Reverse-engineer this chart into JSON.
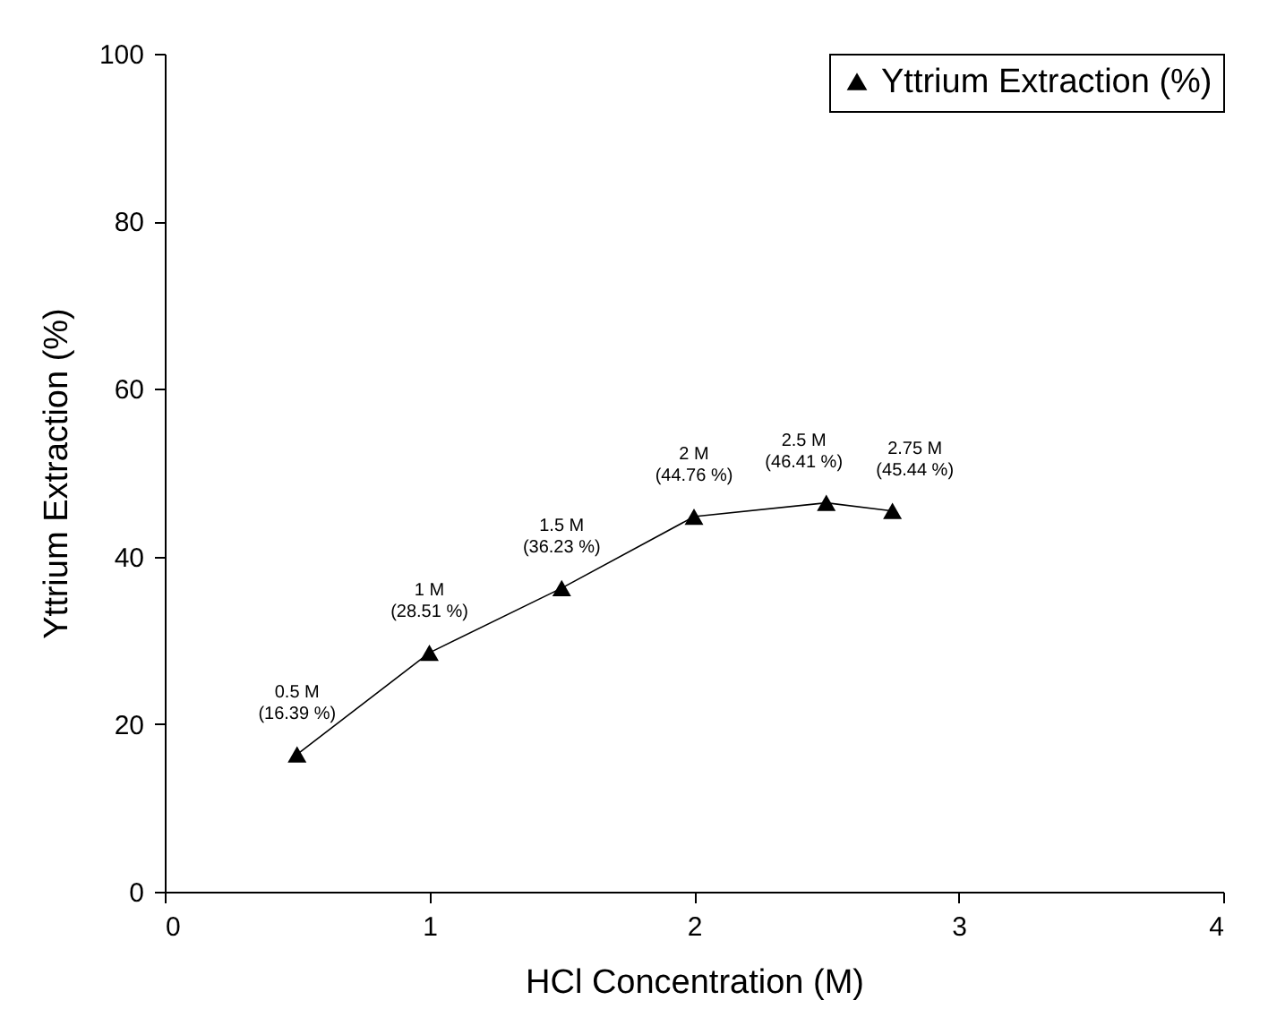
{
  "chart_data": {
    "type": "line",
    "xlabel": "HCl Concentration (M)",
    "ylabel": "Yttrium Extraction (%)",
    "x": [
      0.5,
      1,
      1.5,
      2,
      2.5,
      2.75
    ],
    "series": [
      {
        "name": "Yttrium Extraction (%)",
        "color": "#000000",
        "values": [
          16.39,
          28.51,
          36.23,
          44.76,
          46.41,
          45.44
        ],
        "value_labels": [
          "0.5 M\n(16.39 %)",
          "1 M\n(28.51 %)",
          "1.5 M\n(36.23 %)",
          "2 M\n(44.76 %)",
          "2.5 M\n(46.41 %)",
          "2.75 M\n(45.44 %)"
        ]
      }
    ],
    "xlim": [
      0,
      4
    ],
    "ylim": [
      0,
      100
    ],
    "xticks": [
      0,
      1,
      2,
      3,
      4
    ],
    "yticks": [
      0,
      20,
      40,
      60,
      80,
      100
    ],
    "marker": "triangle",
    "line_style": "solid",
    "legend": "top right",
    "grid": false
  }
}
